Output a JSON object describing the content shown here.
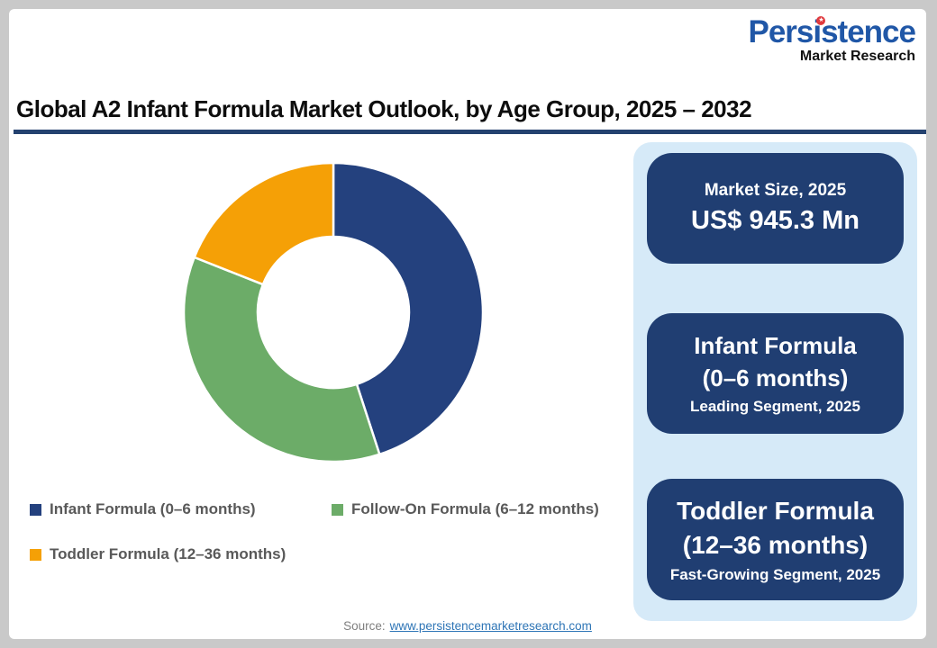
{
  "logo": {
    "title": "Persistence",
    "subtitle": "Market Research",
    "star": "★"
  },
  "header": {
    "title": "Global A2 Infant Formula Market Outlook, by Age Group, 2025 – 2032"
  },
  "chart_data": {
    "type": "pie",
    "donut": true,
    "inner_radius_ratio": 0.5,
    "start_angle": "top",
    "direction": "clockwise",
    "title": "Global A2 Infant Formula Market Outlook, by Age Group, 2025 – 2032",
    "value_unit": "percent share, estimated from arc angles",
    "segments": [
      {
        "label": "Infant Formula (0–6 months)",
        "value": 45,
        "color": "#24417E"
      },
      {
        "label": "Follow-On Formula (6–12 months)",
        "value": 36,
        "color": "#6CAC68"
      },
      {
        "label": "Toddler Formula (12–36 months)",
        "value": 19,
        "color": "#F5A006"
      }
    ],
    "legend_position": "bottom-left",
    "annotations": [
      "Market Size, 2025: US$ 945.3 Mn",
      "Leading Segment, 2025: Infant Formula (0–6 months)",
      "Fast-Growing Segment, 2025: Toddler Formula (12–36 months)"
    ]
  },
  "info_panel": {
    "cards": [
      {
        "line1": "Market Size, 2025",
        "line2": "US$ 945.3 Mn"
      },
      {
        "line1": "Infant Formula",
        "line2": "(0–6 months)",
        "line3": "Leading Segment, 2025"
      },
      {
        "line1": "Toddler Formula",
        "line2": "(12–36 months)",
        "line3": "Fast-Growing Segment, 2025"
      }
    ]
  },
  "footer": {
    "source_label": "Source:",
    "source_link": "www.persistencemarketresearch.com"
  },
  "colors": {
    "navy": "#24417E",
    "green": "#6CAC68",
    "orange": "#F5A006",
    "card_navy": "#203E72",
    "panel_blue": "#D6EAF8",
    "underline": "#24426F",
    "legend_text": "#595959",
    "link": "#2E75B6",
    "source_gray": "#7F7F7F",
    "logo_blue": "#2057A7",
    "logo_red": "#E03A3E",
    "frame_gray": "#C9C9C9"
  }
}
